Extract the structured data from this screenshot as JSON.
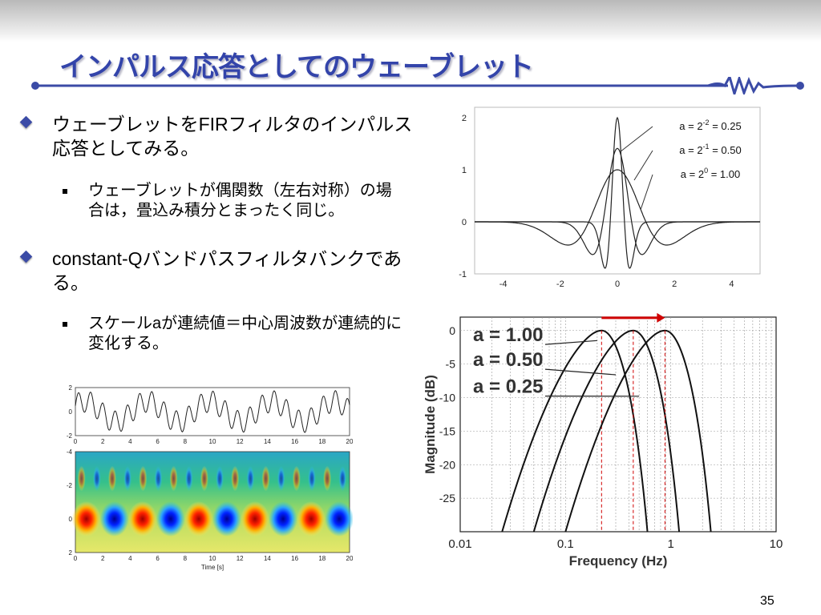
{
  "slide": {
    "title": "インパルス応答としてのウェーブレット",
    "page_number": "35",
    "accent_color": "#3344aa"
  },
  "bullets": [
    {
      "text": "ウェーブレットをFIRフィルタのインパルス応答としてみる。",
      "sub": [
        "ウェーブレットが偶関数（左右対称）の場合は，畳込み積分とまったく同じ。"
      ]
    },
    {
      "text": "constant-Qバンドパスフィルタバンクである。",
      "sub": [
        "スケールaが連続値＝中心周波数が連続的に変化する。"
      ]
    }
  ],
  "chart_data": [
    {
      "type": "line",
      "xlim": [
        -5,
        5
      ],
      "ylim": [
        -1,
        2.2
      ],
      "xticks": [
        "-4",
        "-2",
        "0",
        "2",
        "4"
      ],
      "yticks": [
        "-1",
        "0",
        "1",
        "2"
      ],
      "annotations": [
        "a = 2-2 = 0.25",
        "a = 2-1 = 0.50",
        "a = 20 = 1.00"
      ],
      "annotation_parts": [
        {
          "pre": "a = 2",
          "sup": "-2",
          "post": " = 0.25"
        },
        {
          "pre": "a = 2",
          "sup": "-1",
          "post": " = 0.50"
        },
        {
          "pre": "a = 2",
          "sup": "0",
          "post": " = 1.00"
        }
      ],
      "series": [
        {
          "scale": 0.25,
          "peak": 2.0
        },
        {
          "scale": 0.5,
          "peak": 1.41
        },
        {
          "scale": 1.0,
          "peak": 1.0
        }
      ]
    },
    {
      "type": "line",
      "xscale": "log",
      "xlim": [
        0.01,
        10
      ],
      "ylim": [
        -30,
        2
      ],
      "xlabel": "Frequency (Hz)",
      "ylabel": "Magnitude (dB)",
      "xticks": [
        "0.01",
        "0.1",
        "1",
        "10"
      ],
      "yticks": [
        "0",
        "-5",
        "-10",
        "-15",
        "-20",
        "-25"
      ],
      "annotations": [
        "a = 1.00",
        "a = 0.50",
        "a = 0.25"
      ],
      "series": [
        {
          "center": 0.22,
          "lower_cutoff": 0.025,
          "upper_cutoff": 0.6
        },
        {
          "center": 0.44,
          "lower_cutoff": 0.05,
          "upper_cutoff": 1.2
        },
        {
          "center": 0.88,
          "lower_cutoff": 0.1,
          "upper_cutoff": 2.4
        }
      ],
      "arrow_color": "#d00000",
      "grid": true
    },
    {
      "type": "line",
      "xlim": [
        0,
        20
      ],
      "ylim": [
        -2,
        2
      ],
      "xticks": [
        "0",
        "2",
        "4",
        "6",
        "8",
        "10",
        "12",
        "14",
        "16",
        "18",
        "20"
      ],
      "yticks": [
        "2",
        "0",
        "-2"
      ]
    },
    {
      "type": "heatmap",
      "xlim": [
        0,
        20
      ],
      "ylim": [
        -4,
        2
      ],
      "xlabel": "Time [s]",
      "xticks": [
        "0",
        "2",
        "4",
        "6",
        "8",
        "10",
        "12",
        "14",
        "16",
        "18",
        "20"
      ],
      "yticks": [
        "-4",
        "-2",
        "0",
        "2"
      ],
      "colormap": "jet"
    }
  ]
}
